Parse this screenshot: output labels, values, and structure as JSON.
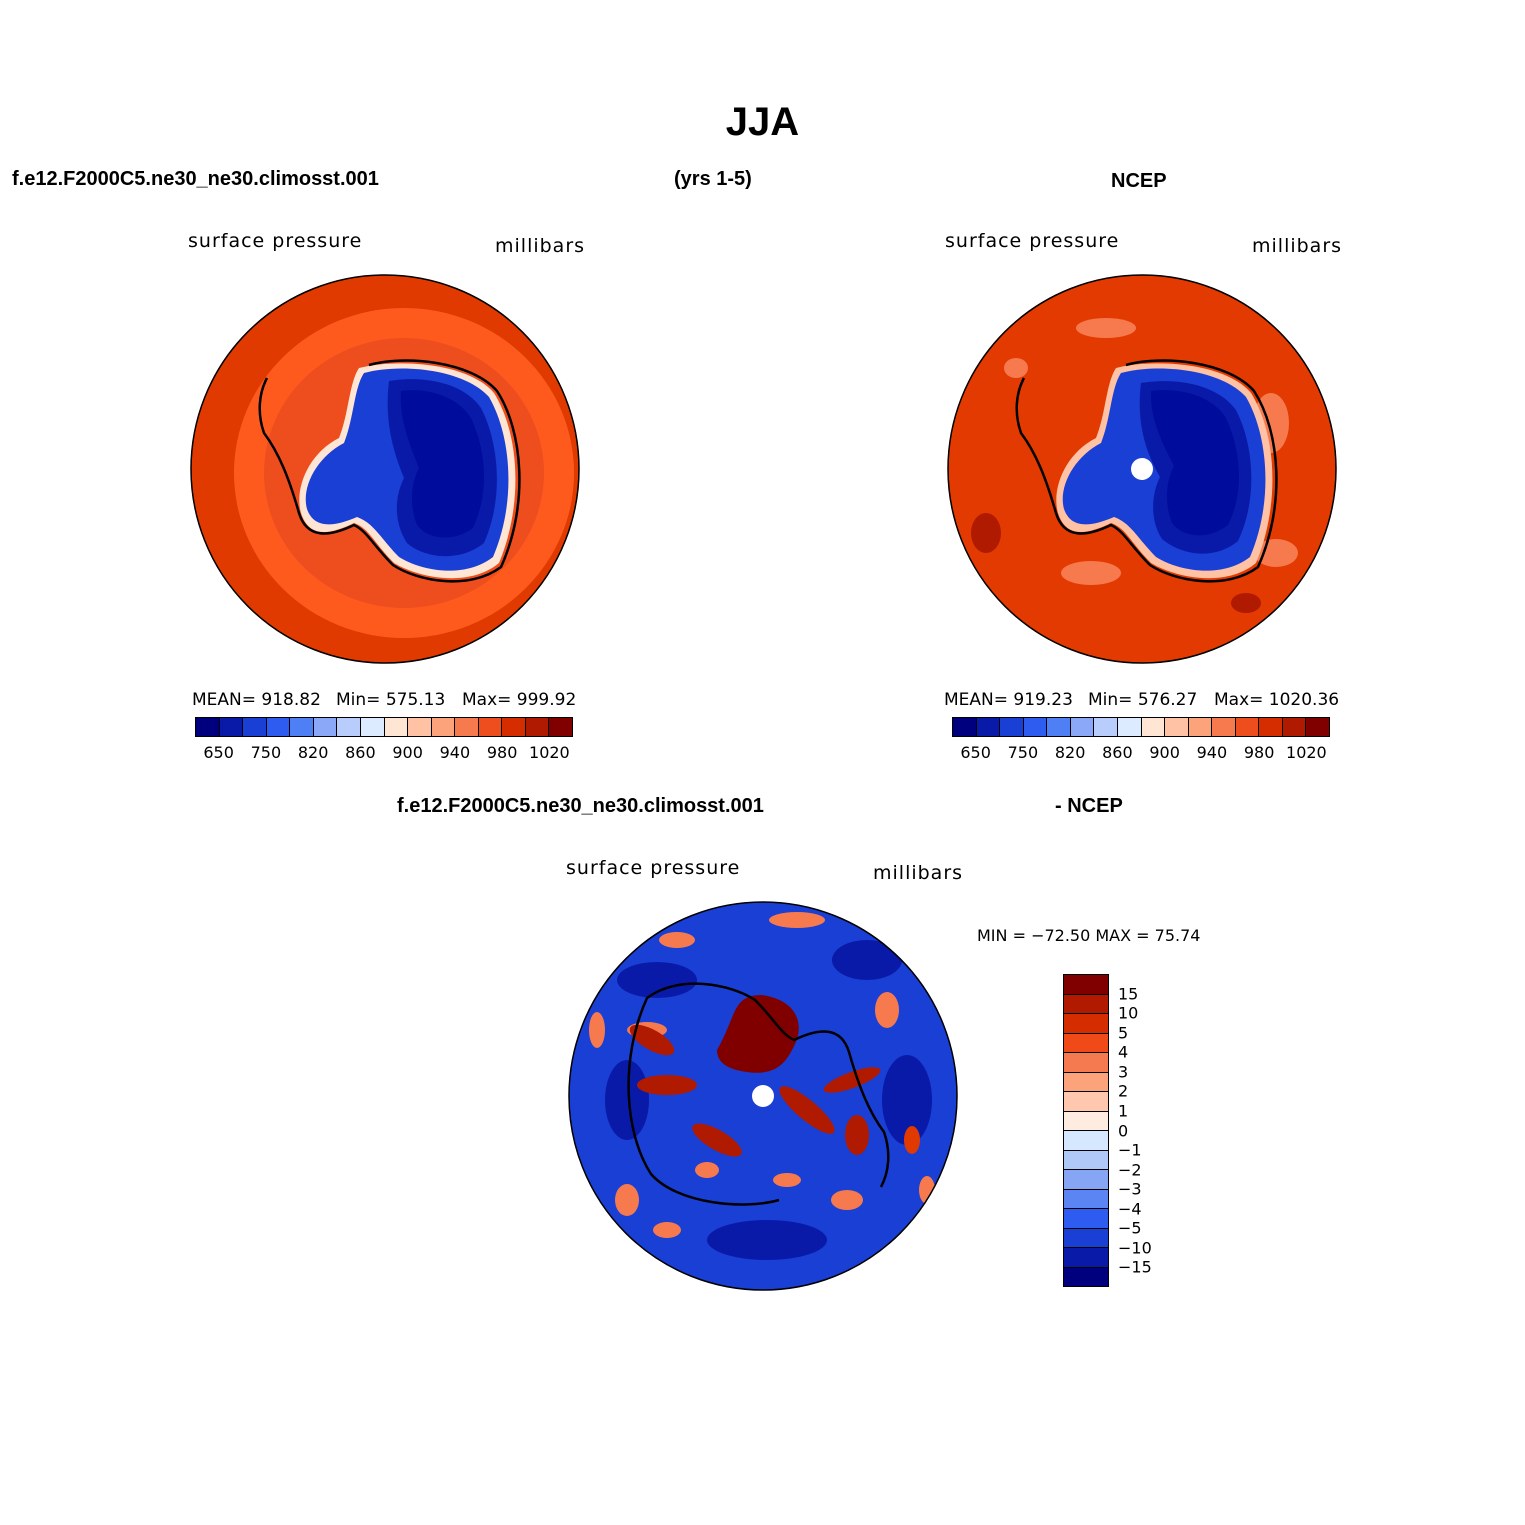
{
  "figure": {
    "title": "JJA",
    "case_name": "f.e12.F2000C5.ne30_ne30.climosst.001",
    "years": "(yrs 1-5)",
    "obs_name": "NCEP",
    "diff_case_name": "f.e12.F2000C5.ne30_ne30.climosst.001",
    "diff_obs_name": "- NCEP"
  },
  "panels": [
    {
      "variable": "surface pressure",
      "units": "millibars",
      "stats": {
        "mean": "MEAN= 918.82",
        "min": "Min= 575.13",
        "max": "Max= 999.92"
      }
    },
    {
      "variable": "surface pressure",
      "units": "millibars",
      "stats": {
        "mean": "MEAN= 919.23",
        "min": "Min= 576.27",
        "max": "Max= 1020.36"
      }
    },
    {
      "variable": "surface pressure",
      "units": "millibars",
      "stats": {
        "minmax": "MIN = −72.50  MAX =   75.74"
      }
    }
  ],
  "colorbar_abs": {
    "colors": [
      "#00007f",
      "#0a1aa8",
      "#1a3fd4",
      "#2f5cf0",
      "#4f7ff5",
      "#8aa8f7",
      "#b8cdfb",
      "#dcebff",
      "#ffe5d4",
      "#ffc2a4",
      "#fca37c",
      "#f77a4f",
      "#ee4d1e",
      "#d52d00",
      "#b01a00",
      "#800000"
    ],
    "tick_labels": [
      "650",
      "750",
      "820",
      "860",
      "900",
      "940",
      "980",
      "1020"
    ]
  },
  "colorbar_diff": {
    "colors": [
      "#800000",
      "#b21a00",
      "#d52d00",
      "#ef4a18",
      "#f57a4f",
      "#fca37c",
      "#ffc8ae",
      "#ffece0",
      "#d6e8ff",
      "#b0c8f8",
      "#86a5f5",
      "#5a85f2",
      "#2f5cf0",
      "#1a3fd4",
      "#0a1aa8",
      "#00007f"
    ],
    "tick_labels": [
      "15",
      "10",
      "5",
      "4",
      "3",
      "2",
      "1",
      "0",
      "−1",
      "−2",
      "−3",
      "−4",
      "−5",
      "−10",
      "−15"
    ]
  },
  "colors": {
    "ocean_model": "#e03a00",
    "ocean_model_light": "#ff5a1e",
    "ocean_obs": "#e23a00",
    "ice_dark": "#000c9c",
    "ice_mid": "#1a3fd4",
    "diff_bg": "#1a3fd4",
    "diff_red": "#c62400"
  }
}
